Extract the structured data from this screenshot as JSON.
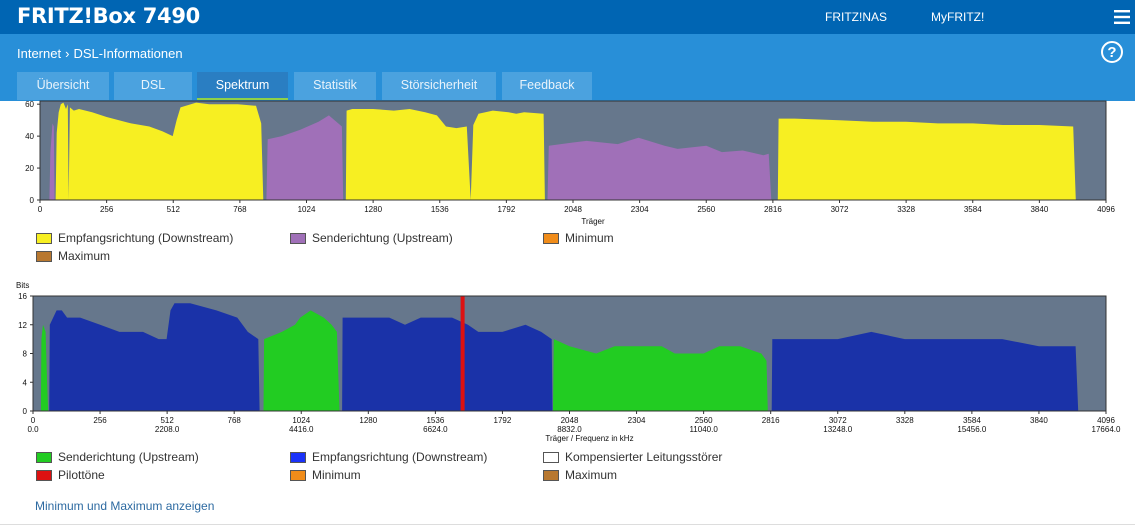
{
  "header": {
    "brand": "FRITZ!Box 7490",
    "links": [
      "FRITZ!NAS",
      "MyFRITZ!"
    ]
  },
  "breadcrumb": {
    "parent": "Internet",
    "current": "DSL-Informationen"
  },
  "help_label": "?",
  "tabs": [
    "Übersicht",
    "DSL",
    "Spektrum",
    "Statistik",
    "Störsicherheit",
    "Feedback"
  ],
  "active_tab": "Spektrum",
  "colors": {
    "downstream_yellow": "#f7ef22",
    "upstream_purple": "#a070b8",
    "upstream_green": "#22cc22",
    "downstream_blue": "#1a32a8",
    "pilot_red": "#dd1111",
    "minimum": "#f08c1a",
    "maximum": "#b87830",
    "kompensiert": "#ffffff",
    "plot_bg": "#66778c"
  },
  "chart_data": [
    {
      "type": "area",
      "title": "",
      "xlabel": "Träger",
      "ylabel": "",
      "xlim": [
        0,
        4096
      ],
      "ylim": [
        0,
        62
      ],
      "x_ticks": [
        0,
        256,
        512,
        768,
        1024,
        1280,
        1536,
        1792,
        2048,
        2304,
        2560,
        2816,
        3072,
        3328,
        3584,
        3840,
        4096
      ],
      "y_ticks": [
        0,
        20,
        40,
        60
      ],
      "series": [
        {
          "name": "Empfangsrichtung (Downstream)",
          "color": "#f7ef22",
          "segments": [
            [
              [
                60,
                0
              ],
              [
                64,
                42
              ],
              [
                72,
                55
              ],
              [
                80,
                60
              ],
              [
                90,
                61
              ],
              [
                100,
                57
              ],
              [
                107,
                60
              ],
              [
                110,
                0
              ],
              [
                115,
                58
              ],
              [
                130,
                56
              ],
              [
                150,
                57
              ],
              [
                200,
                55
              ],
              [
                256,
                52
              ],
              [
                350,
                48
              ],
              [
                420,
                46
              ],
              [
                470,
                43
              ],
              [
                510,
                40
              ],
              [
                525,
                50
              ],
              [
                540,
                58
              ],
              [
                600,
                61
              ],
              [
                650,
                60
              ],
              [
                700,
                60
              ],
              [
                760,
                60
              ],
              [
                830,
                59
              ],
              [
                850,
                48
              ],
              [
                858,
                0
              ]
            ],
            [
              [
                1175,
                0
              ],
              [
                1178,
                56
              ],
              [
                1200,
                57
              ],
              [
                1280,
                57
              ],
              [
                1360,
                56
              ],
              [
                1420,
                57
              ],
              [
                1480,
                55
              ],
              [
                1525,
                53
              ],
              [
                1560,
                46
              ],
              [
                1600,
                45
              ],
              [
                1640,
                46
              ],
              [
                1655,
                0
              ],
              [
                1665,
                47
              ],
              [
                1685,
                54
              ],
              [
                1740,
                56
              ],
              [
                1800,
                55
              ],
              [
                1830,
                54
              ],
              [
                1860,
                55
              ],
              [
                1935,
                54
              ],
              [
                1940,
                0
              ]
            ],
            [
              [
                2835,
                0
              ],
              [
                2838,
                51
              ],
              [
                2900,
                51
              ],
              [
                3072,
                50
              ],
              [
                3200,
                49
              ],
              [
                3328,
                49
              ],
              [
                3450,
                48
              ],
              [
                3584,
                48
              ],
              [
                3700,
                47
              ],
              [
                3840,
                47
              ],
              [
                3970,
                46
              ],
              [
                3980,
                0
              ]
            ]
          ]
        },
        {
          "name": "Senderichtung (Upstream)",
          "color": "#a070b8",
          "segments": [
            [
              [
                36,
                0
              ],
              [
                40,
                30
              ],
              [
                48,
                48
              ],
              [
                53,
                46
              ],
              [
                56,
                0
              ]
            ],
            [
              [
                870,
                0
              ],
              [
                875,
                38
              ],
              [
                930,
                40
              ],
              [
                1000,
                44
              ],
              [
                1070,
                49
              ],
              [
                1110,
                53
              ],
              [
                1160,
                46
              ],
              [
                1165,
                0
              ]
            ],
            [
              [
                1950,
                0
              ],
              [
                1955,
                34
              ],
              [
                2048,
                36
              ],
              [
                2100,
                37
              ],
              [
                2220,
                35
              ],
              [
                2300,
                39
              ],
              [
                2400,
                34
              ],
              [
                2450,
                32
              ],
              [
                2560,
                34
              ],
              [
                2620,
                30
              ],
              [
                2700,
                31
              ],
              [
                2780,
                28
              ],
              [
                2800,
                29
              ],
              [
                2810,
                0
              ]
            ]
          ]
        }
      ],
      "legend": [
        "Empfangsrichtung (Downstream)",
        "Senderichtung (Upstream)",
        "Minimum",
        "Maximum"
      ]
    },
    {
      "type": "area",
      "title": "",
      "xlabel": "Träger / Frequenz in kHz",
      "ylabel": "Bits",
      "xlim": [
        0,
        4096
      ],
      "ylim": [
        0,
        16
      ],
      "x_ticks": [
        0,
        256,
        512,
        768,
        1024,
        1280,
        1536,
        1792,
        2048,
        2304,
        2560,
        2816,
        3072,
        3328,
        3584,
        3840,
        4096
      ],
      "x_freq_ticks": [
        [
          0,
          "0.0"
        ],
        [
          512,
          "2208.0"
        ],
        [
          1024,
          "4416.0"
        ],
        [
          1536,
          "6624.0"
        ],
        [
          2048,
          "8832.0"
        ],
        [
          2560,
          "11040.0"
        ],
        [
          3072,
          "13248.0"
        ],
        [
          3584,
          "15456.0"
        ],
        [
          4096,
          "17664.0"
        ]
      ],
      "y_ticks": [
        0,
        4,
        8,
        12,
        16
      ],
      "pilot_tone": 1640,
      "series": [
        {
          "name": "Senderichtung (Upstream)",
          "color": "#22cc22",
          "segments": [
            [
              [
                30,
                0
              ],
              [
                32,
                10
              ],
              [
                38,
                12
              ],
              [
                48,
                11
              ],
              [
                54,
                4
              ],
              [
                58,
                0
              ]
            ],
            [
              [
                880,
                0
              ],
              [
                882,
                10
              ],
              [
                950,
                11
              ],
              [
                1000,
                12
              ],
              [
                1020,
                13
              ],
              [
                1060,
                14
              ],
              [
                1110,
                13
              ],
              [
                1140,
                12
              ],
              [
                1160,
                11
              ],
              [
                1170,
                0
              ]
            ],
            [
              [
                1985,
                0
              ],
              [
                1988,
                10
              ],
              [
                2048,
                9
              ],
              [
                2150,
                8
              ],
              [
                2220,
                9
              ],
              [
                2304,
                9
              ],
              [
                2400,
                9
              ],
              [
                2450,
                8
              ],
              [
                2560,
                8
              ],
              [
                2620,
                9
              ],
              [
                2700,
                9
              ],
              [
                2780,
                8
              ],
              [
                2800,
                7
              ],
              [
                2805,
                0
              ]
            ]
          ]
        },
        {
          "name": "Empfangsrichtung (Downstream)",
          "color": "#1a32a8",
          "segments": [
            [
              [
                62,
                0
              ],
              [
                64,
                12
              ],
              [
                90,
                14
              ],
              [
                110,
                14
              ],
              [
                130,
                13
              ],
              [
                180,
                13
              ],
              [
                256,
                12
              ],
              [
                330,
                11
              ],
              [
                420,
                11
              ],
              [
                480,
                10
              ],
              [
                510,
                10
              ],
              [
                525,
                14
              ],
              [
                540,
                15
              ],
              [
                600,
                15
              ],
              [
                700,
                14
              ],
              [
                780,
                13
              ],
              [
                820,
                11
              ],
              [
                860,
                10
              ],
              [
                865,
                0
              ]
            ],
            [
              [
                1180,
                0
              ],
              [
                1182,
                13
              ],
              [
                1280,
                13
              ],
              [
                1360,
                13
              ],
              [
                1420,
                12
              ],
              [
                1480,
                13
              ],
              [
                1536,
                13
              ],
              [
                1600,
                13
              ],
              [
                1660,
                12
              ],
              [
                1700,
                11
              ],
              [
                1792,
                11
              ],
              [
                1880,
                12
              ],
              [
                1940,
                11
              ],
              [
                1980,
                10
              ],
              [
                1983,
                0
              ]
            ],
            [
              [
                2820,
                0
              ],
              [
                2822,
                10
              ],
              [
                2900,
                10
              ],
              [
                3072,
                10
              ],
              [
                3200,
                11
              ],
              [
                3328,
                10
              ],
              [
                3450,
                10
              ],
              [
                3584,
                10
              ],
              [
                3700,
                10
              ],
              [
                3840,
                9
              ],
              [
                3980,
                9
              ],
              [
                3990,
                0
              ]
            ]
          ]
        }
      ],
      "legend": [
        "Senderichtung (Upstream)",
        "Empfangsrichtung (Downstream)",
        "Kompensierter Leitungsstörer",
        "Pilottöne",
        "Minimum",
        "Maximum"
      ]
    }
  ],
  "minmax_link": "Minimum und Maximum anzeigen"
}
